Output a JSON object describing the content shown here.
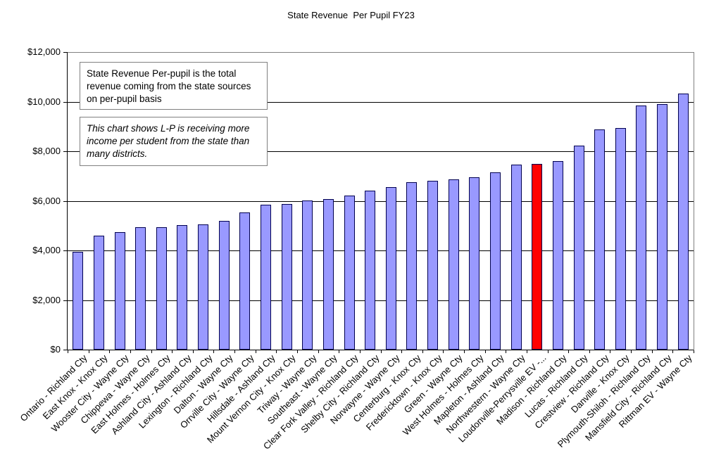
{
  "chart_data": {
    "type": "bar",
    "title": "State Revenue  Per Pupil FY23",
    "xlabel": "",
    "ylabel": "",
    "ylim": [
      0,
      12000
    ],
    "y_tick_step": 2000,
    "y_tick_labels": [
      "$0",
      "$2,000",
      "$4,000",
      "$6,000",
      "$8,000",
      "$10,000",
      "$12,000"
    ],
    "grid": true,
    "legend": false,
    "categories": [
      "Ontario - Richland Cty",
      "East Knox - Knox Cty",
      "Wooster City - Wayne Cty",
      "Chippewa - Wayne Cty",
      "East Holmes - Holmes Cty",
      "Ashland City - Ashland Cty",
      "Lexington - Richland Cty",
      "Dalton - Wayne Cty",
      "Orrville City - Wayne Cty",
      "Hillsdale - Ashland Cty",
      "Mount Vernon City - Knox Cty",
      "Triway - Wayne Cty",
      "Southeast - Wayne Cty",
      "Clear Fork Valley - Richland Cty",
      "Shelby City - Richland Cty",
      "Norwayne - Wayne Cty",
      "Centerburg - Knox Cty",
      "Fredericktown - Knox Cty",
      "Green - Wayne Cty",
      "West Holmes - Holmes Cty",
      "Mapleton - Ashland Cty",
      "Northwestern - Wayne Cty",
      "Loudonville-Perrysville EV -...",
      "Madison - Richland Cty",
      "Lucas - Richland Cty",
      "Crestview - Richland Cty",
      "Danville - Knox Cty",
      "Plymouth-Shiloh - Richland Cty",
      "Mansfield City - Richland Cty",
      "Rittman EV - Wayne Cty"
    ],
    "values": [
      3950,
      4600,
      4725,
      4925,
      4950,
      5025,
      5050,
      5200,
      5525,
      5850,
      5875,
      6025,
      6075,
      6225,
      6400,
      6550,
      6750,
      6800,
      6875,
      6950,
      7150,
      7450,
      7500,
      7600,
      8225,
      8875,
      8950,
      9850,
      9900,
      10330
    ],
    "highlight_index": 22,
    "colors": {
      "bar_fill": "#9999FF",
      "bar_border": "#000050",
      "highlight_fill": "#FF0000",
      "gridline": "#000000",
      "axis": "#000000",
      "plot_border": "#808080",
      "text": "#000000"
    }
  },
  "annotations": [
    {
      "text": "State Revenue Per-pupil is the total revenue coming from the state sources on per-pupil basis",
      "style": "normal"
    },
    {
      "text": "This chart shows L-P is receiving more income per student from the state than many districts.",
      "style": "italic"
    }
  ]
}
